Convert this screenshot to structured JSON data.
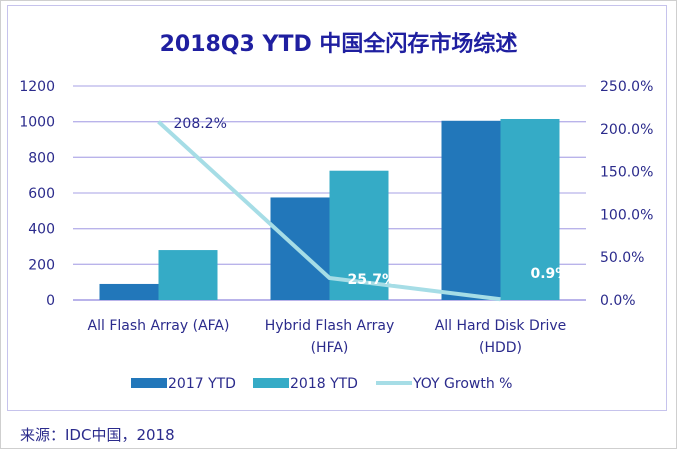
{
  "source_note": "来源：IDC中国，2018",
  "colors": {
    "series_2017": "#2277ba",
    "series_2018": "#35abc6",
    "growth_line": "#a6dde6",
    "grid": "#b9b3ea",
    "text": "#2b2b8c",
    "title": "#1f1fa0"
  },
  "chart_data": {
    "type": "bar",
    "title": "2018Q3 YTD 中国全闪存市场综述",
    "categories": [
      [
        "All Flash Array (AFA)"
      ],
      [
        "Hybrid Flash Array",
        "(HFA)"
      ],
      [
        "All Hard Disk Drive",
        "(HDD)"
      ]
    ],
    "series": [
      {
        "name": "2017 YTD",
        "type": "bar",
        "axis": "left",
        "values": [
          90,
          575,
          1005
        ]
      },
      {
        "name": "2018 YTD",
        "type": "bar",
        "axis": "left",
        "values": [
          280,
          725,
          1015
        ]
      },
      {
        "name": "YOY Growth %",
        "type": "line",
        "axis": "right",
        "values": [
          208.2,
          25.7,
          0.9
        ],
        "labels": [
          "208.2%",
          "25.7%",
          "0.9%"
        ]
      }
    ],
    "ylim_left": [
      0,
      1200
    ],
    "yticks_left": [
      "0",
      "200",
      "400",
      "600",
      "800",
      "1000",
      "1200"
    ],
    "ylim_right": [
      0,
      250
    ],
    "yticks_right": [
      "0.0%",
      "50.0%",
      "100.0%",
      "150.0%",
      "200.0%",
      "250.0%"
    ],
    "grid": true,
    "legend_position": "bottom"
  }
}
